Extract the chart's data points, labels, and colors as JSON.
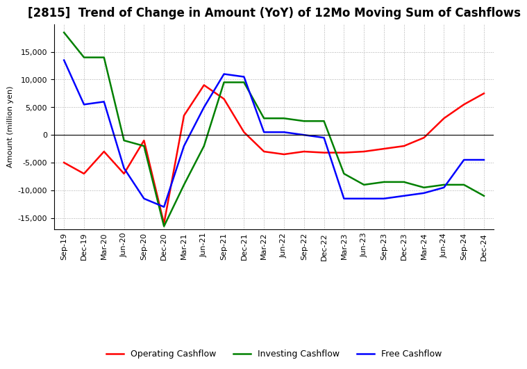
{
  "title": "[2815]  Trend of Change in Amount (YoY) of 12Mo Moving Sum of Cashflows",
  "ylabel": "Amount (million yen)",
  "x_labels": [
    "Sep-19",
    "Dec-19",
    "Mar-20",
    "Jun-20",
    "Sep-20",
    "Dec-20",
    "Mar-21",
    "Jun-21",
    "Sep-21",
    "Dec-21",
    "Mar-22",
    "Jun-22",
    "Sep-22",
    "Dec-22",
    "Mar-23",
    "Jun-23",
    "Sep-23",
    "Dec-23",
    "Mar-24",
    "Jun-24",
    "Sep-24",
    "Dec-24"
  ],
  "operating": [
    -5000,
    -7000,
    -3000,
    -7000,
    -1000,
    -16000,
    3500,
    9000,
    6500,
    500,
    -3000,
    -3500,
    -3000,
    -3200,
    -3200,
    -3000,
    -2500,
    -2000,
    -500,
    3000,
    5500,
    7500
  ],
  "investing": [
    18500,
    14000,
    14000,
    -1000,
    -2000,
    -16500,
    -9000,
    -2000,
    9500,
    9500,
    3000,
    3000,
    2500,
    2500,
    -7000,
    -9000,
    -8500,
    -8500,
    -9500,
    -9000,
    -9000,
    -11000
  ],
  "free": [
    13500,
    5500,
    6000,
    -6000,
    -11500,
    -13000,
    -2000,
    5000,
    11000,
    10500,
    500,
    500,
    0,
    -500,
    -11500,
    -11500,
    -11500,
    -11000,
    -10500,
    -9500,
    -4500,
    -4500
  ],
  "operating_color": "#ff0000",
  "investing_color": "#008000",
  "free_color": "#0000ff",
  "ylim": [
    -17000,
    20000
  ],
  "yticks": [
    -15000,
    -10000,
    -5000,
    0,
    5000,
    10000,
    15000
  ],
  "grid_color": "#aaaaaa",
  "background_color": "#ffffff",
  "title_fontsize": 12,
  "axis_fontsize": 8,
  "legend_fontsize": 9
}
